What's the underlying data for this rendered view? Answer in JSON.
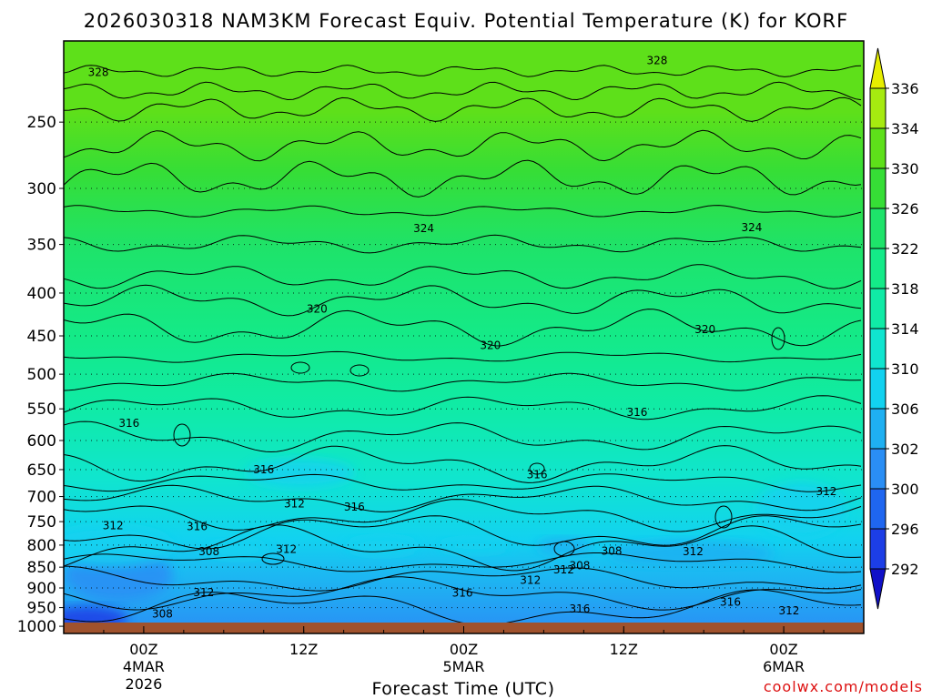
{
  "page": {
    "title": "2026030318 NAM3KM Forecast Equiv. Potential Temperature (K) for KORF",
    "credit": "coolwx.com/models"
  },
  "chart_data": {
    "type": "heatmap",
    "title": "2026030318 NAM3KM Forecast Equiv. Potential Temperature (K) for KORF",
    "xlabel": "Forecast Time (UTC)",
    "ylabel": "",
    "x_ticks": [
      {
        "hour": 6,
        "lines": [
          "00Z",
          "4MAR",
          "2026"
        ]
      },
      {
        "hour": 18,
        "lines": [
          "12Z"
        ]
      },
      {
        "hour": 30,
        "lines": [
          "00Z",
          "5MAR"
        ]
      },
      {
        "hour": 42,
        "lines": [
          "12Z"
        ]
      },
      {
        "hour": 54,
        "lines": [
          "00Z",
          "6MAR"
        ]
      }
    ],
    "x_range_hours": [
      0,
      60
    ],
    "y_ticks": [
      250,
      300,
      350,
      400,
      450,
      500,
      550,
      600,
      650,
      700,
      750,
      800,
      850,
      900,
      950,
      1000
    ],
    "y_range_hpa": [
      200,
      1020
    ],
    "y_scale": "log",
    "grid": "dotted-horizontal",
    "colorbar": {
      "levels": [
        292,
        296,
        300,
        302,
        306,
        310,
        314,
        318,
        322,
        326,
        330,
        334,
        336
      ],
      "labels": [
        "292",
        "296",
        "300",
        "302",
        "306",
        "310",
        "314",
        "318",
        "322",
        "326",
        "330",
        "334",
        "336"
      ],
      "colors": [
        "#1c3ee6",
        "#1f66f0",
        "#2a8ef5",
        "#1fb0f2",
        "#12d2f0",
        "#10e5cf",
        "#10eba6",
        "#14ea88",
        "#1ee36a",
        "#36de36",
        "#5ee01a",
        "#a6ea10"
      ],
      "low_color": "#1010c8",
      "high_color": "#e6ee00"
    },
    "ground_color": "#a0522d",
    "contour_labels": [
      {
        "value": "328",
        "hour": 2.6,
        "p": 218
      },
      {
        "value": "328",
        "hour": 44.5,
        "p": 211
      },
      {
        "value": "324",
        "hour": 27.0,
        "p": 335
      },
      {
        "value": "324",
        "hour": 51.6,
        "p": 334
      },
      {
        "value": "320",
        "hour": 19.0,
        "p": 418
      },
      {
        "value": "320",
        "hour": 32.0,
        "p": 462
      },
      {
        "value": "320",
        "hour": 48.1,
        "p": 442
      },
      {
        "value": "316",
        "hour": 4.9,
        "p": 572
      },
      {
        "value": "316",
        "hour": 15.0,
        "p": 650
      },
      {
        "value": "316",
        "hour": 35.5,
        "p": 659
      },
      {
        "value": "316",
        "hour": 43.0,
        "p": 555
      },
      {
        "value": "316",
        "hour": 21.8,
        "p": 720
      },
      {
        "value": "316",
        "hour": 10.0,
        "p": 760
      },
      {
        "value": "316",
        "hour": 29.9,
        "p": 912
      },
      {
        "value": "316",
        "hour": 38.7,
        "p": 953
      },
      {
        "value": "316",
        "hour": 50.0,
        "p": 936
      },
      {
        "value": "312",
        "hour": 3.7,
        "p": 758
      },
      {
        "value": "312",
        "hour": 17.3,
        "p": 714
      },
      {
        "value": "312",
        "hour": 16.7,
        "p": 809
      },
      {
        "value": "312",
        "hour": 35.0,
        "p": 881
      },
      {
        "value": "312",
        "hour": 37.5,
        "p": 856
      },
      {
        "value": "312",
        "hour": 47.2,
        "p": 814
      },
      {
        "value": "312",
        "hour": 57.2,
        "p": 690
      },
      {
        "value": "312",
        "hour": 10.5,
        "p": 911
      },
      {
        "value": "312",
        "hour": 54.4,
        "p": 958
      },
      {
        "value": "308",
        "hour": 10.9,
        "p": 814
      },
      {
        "value": "308",
        "hour": 41.1,
        "p": 813
      },
      {
        "value": "308",
        "hour": 38.7,
        "p": 847
      },
      {
        "value": "308",
        "hour": 7.4,
        "p": 966
      }
    ]
  }
}
